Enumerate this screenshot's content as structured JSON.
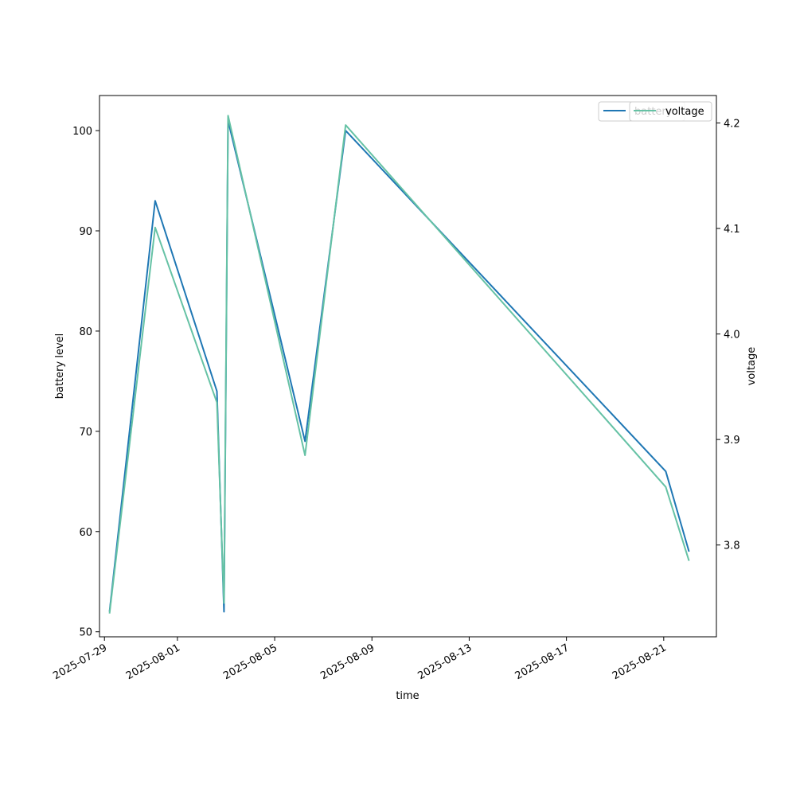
{
  "chart_data": {
    "type": "line",
    "xlabel": "time",
    "ylabel": "battery level",
    "y2label": "voltage",
    "x_ticks": [
      "2025-07-29",
      "2025-08-01",
      "2025-08-05",
      "2025-08-09",
      "2025-08-13",
      "2025-08-17",
      "2025-08-21"
    ],
    "y_ticks": [
      50,
      60,
      70,
      80,
      90,
      100
    ],
    "y2_ticks": [
      3.8,
      3.9,
      4.0,
      4.1,
      4.2
    ],
    "xlim": [
      "2025-07-28T19:06",
      "2025-08-23T04:00"
    ],
    "ylim": [
      49.5,
      103.5
    ],
    "y2lim": [
      3.713,
      4.226
    ],
    "grid": false,
    "legend_placement": "top-right",
    "series": [
      {
        "name": "battery",
        "axis": "left",
        "color": "#1f77b4",
        "x": [
          "2025-07-29T05:00",
          "2025-07-31T02:00",
          "2025-08-02T15:00",
          "2025-08-02T22:00",
          "2025-08-03T02:00",
          "2025-08-06T06:00",
          "2025-08-07T22:00",
          "2025-08-21T02:00",
          "2025-08-22T01:00"
        ],
        "values": [
          52,
          93,
          74,
          52,
          101,
          69,
          100,
          66,
          58
        ]
      },
      {
        "name": "voltage",
        "axis": "right",
        "color": "#66c2a5",
        "x": [
          "2025-07-29T05:00",
          "2025-07-31T02:00",
          "2025-08-02T15:00",
          "2025-08-02T22:00",
          "2025-08-03T02:00",
          "2025-08-06T06:00",
          "2025-08-07T22:00",
          "2025-08-21T02:00",
          "2025-08-22T01:00"
        ],
        "values": [
          3.735,
          4.101,
          3.935,
          3.745,
          4.207,
          3.885,
          4.198,
          3.855,
          3.785
        ]
      }
    ]
  }
}
